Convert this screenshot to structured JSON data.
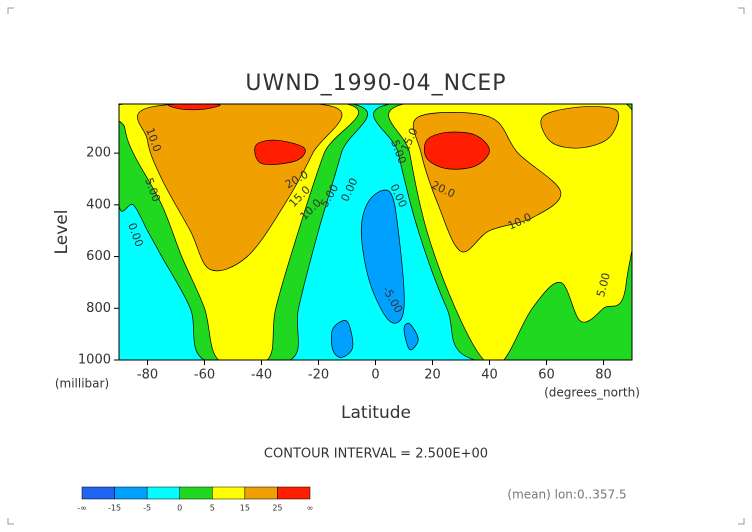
{
  "chart_data": {
    "type": "contour",
    "title": "UWND_1990-04_NCEP",
    "ylabel": "Level",
    "yunits": "(millibar)",
    "xlabel": "Latitude",
    "xunits": "(degrees_north)",
    "xlim": [
      -90,
      90
    ],
    "xticks": [
      -80,
      -60,
      -40,
      -20,
      0,
      20,
      40,
      60,
      80
    ],
    "ylim": [
      1000,
      10
    ],
    "yticks": [
      200,
      400,
      600,
      800,
      1000
    ],
    "background": "#00ffff",
    "regions": [
      {
        "color": "#20d820",
        "lat": [
          -90,
          -8,
          -12,
          -20,
          -27,
          -30,
          -60,
          -65,
          -75,
          -80,
          -85,
          -90
        ],
        "lev": [
          10,
          10,
          200,
          500,
          800,
          1000,
          1000,
          800,
          600,
          500,
          400,
          400
        ]
      },
      {
        "color": "#20d820",
        "lat": [
          5,
          90,
          90,
          35,
          25,
          15,
          8
        ],
        "lev": [
          10,
          10,
          1000,
          1000,
          800,
          500,
          200
        ]
      },
      {
        "color": "#ffff00",
        "lat": [
          -88,
          -10,
          -18,
          -27,
          -35,
          -38,
          -55,
          -60,
          -68,
          -75,
          -85,
          -88
        ],
        "lev": [
          10,
          10,
          200,
          500,
          800,
          1000,
          1000,
          800,
          600,
          400,
          200,
          100
        ]
      },
      {
        "color": "#ffff00",
        "lat": [
          10,
          88,
          88,
          80,
          72,
          65,
          55,
          45,
          38,
          28,
          18,
          12
        ],
        "lev": [
          10,
          10,
          700,
          800,
          850,
          700,
          800,
          1000,
          1000,
          800,
          500,
          200
        ]
      },
      {
        "color": "#f0a000",
        "lat": [
          -78,
          -15,
          -22,
          -32,
          -45,
          -58,
          -65,
          -75,
          -80
        ],
        "lev": [
          20,
          20,
          200,
          400,
          600,
          650,
          500,
          300,
          150
        ]
      },
      {
        "color": "#f0a000",
        "lat": [
          15,
          40,
          50,
          65,
          55,
          40,
          30,
          22,
          16
        ],
        "lev": [
          60,
          60,
          200,
          350,
          450,
          500,
          580,
          400,
          200
        ]
      },
      {
        "color": "#f0a000",
        "lat": [
          58,
          62,
          75,
          85,
          82,
          72,
          62
        ],
        "lev": [
          80,
          40,
          20,
          40,
          140,
          180,
          160
        ]
      },
      {
        "color": "#ff1e00",
        "lat": [
          -42,
          -35,
          -25,
          -28,
          -40
        ],
        "lev": [
          170,
          150,
          180,
          230,
          240
        ]
      },
      {
        "color": "#ff1e00",
        "lat": [
          -72,
          -55,
          -60,
          -68
        ],
        "lev": [
          12,
          12,
          30,
          30
        ]
      },
      {
        "color": "#ff1e00",
        "lat": [
          18,
          25,
          35,
          40,
          35,
          25,
          18
        ],
        "lev": [
          150,
          120,
          130,
          190,
          250,
          260,
          220
        ]
      },
      {
        "color": "#00a0ff",
        "lat": [
          -2,
          5,
          8,
          10,
          5,
          -2,
          -5
        ],
        "lev": [
          380,
          350,
          500,
          800,
          850,
          700,
          500
        ]
      },
      {
        "color": "#00a0ff",
        "lat": [
          -15,
          -10,
          -8,
          -12,
          -15
        ],
        "lev": [
          880,
          850,
          950,
          990,
          960
        ]
      },
      {
        "color": "#00a0ff",
        "lat": [
          10,
          12,
          15,
          12
        ],
        "lev": [
          880,
          860,
          920,
          960
        ]
      }
    ],
    "contour_labels": [
      "10.0",
      "5.00",
      "0.00",
      "20.0",
      "15.0",
      "10.0",
      "5.00",
      "0.00",
      "5.00",
      "0.00",
      "15.0",
      "20.0",
      "10.0",
      "5.00",
      "-5.00"
    ],
    "colorbar": {
      "colors": [
        "#1e64f0",
        "#00a0ff",
        "#00ffff",
        "#20d820",
        "#ffff00",
        "#f0a000",
        "#ff1e00"
      ],
      "labels": [
        "-∞",
        "-15",
        "-5",
        "0",
        "5",
        "15",
        "25",
        "∞"
      ]
    },
    "note": "CONTOUR INTERVAL = 2.500E+00",
    "footer": "(mean) lon:0..357.5"
  }
}
